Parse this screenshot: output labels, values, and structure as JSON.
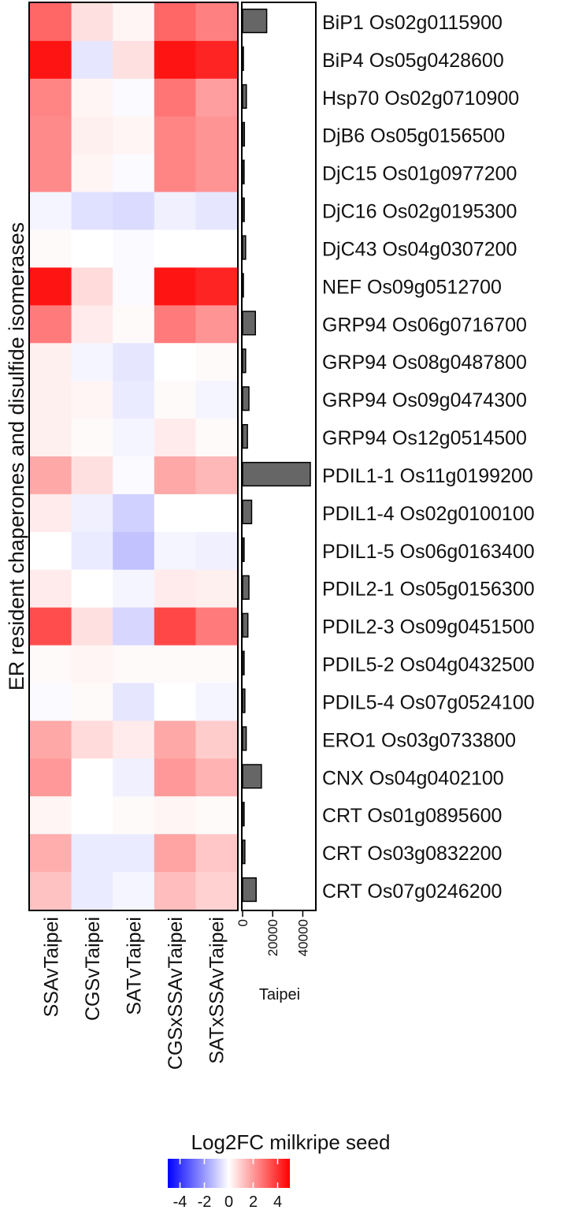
{
  "chart_data": [
    {
      "type": "heatmap",
      "ylabel": "ER resident chaperones and disulfide isomerases",
      "columns": [
        "SSAvTaipei",
        "CGSvTaipei",
        "SATvTaipei",
        "CGSxSSAvTaipei",
        "SATxSSAvTaipei"
      ],
      "rows": [
        "BiP1 Os02g0115900",
        "BiP4 Os05g0428600",
        "Hsp70 Os02g0710900",
        "DjB6 Os05g0156500",
        "DjC15 Os01g0977200",
        "DjC16 Os02g0195300",
        "DjC43 Os04g0307200",
        "NEF Os09g0512700",
        "GRP94 Os06g0716700",
        "GRP94 Os08g0487800",
        "GRP94 Os09g0474300",
        "GRP94 Os12g0514500",
        "PDIL1-1 Os11g0199200",
        "PDIL1-4 Os02g0100100",
        "PDIL1-5 Os06g0163400",
        "PDIL2-1 Os05g0156300",
        "PDIL2-3 Os09g0451500",
        "PDIL5-2 Os04g0432500",
        "PDIL5-4 Os07g0524100",
        "ERO1 Os03g0733800",
        "CNX Os04g0402100",
        "CRT Os01g0895600",
        "CRT Os03g0832200",
        "CRT Os07g0246200"
      ],
      "values": [
        [
          3.0,
          0.6,
          0.2,
          3.0,
          2.5
        ],
        [
          4.6,
          -0.5,
          0.6,
          4.6,
          4.3
        ],
        [
          2.4,
          0.2,
          -0.1,
          2.7,
          1.9
        ],
        [
          2.3,
          0.3,
          0.2,
          2.4,
          2.1
        ],
        [
          2.3,
          0.2,
          -0.1,
          2.4,
          2.1
        ],
        [
          -0.2,
          -0.6,
          -0.7,
          -0.3,
          -0.5
        ],
        [
          0.1,
          0.0,
          -0.1,
          0.0,
          0.0
        ],
        [
          4.6,
          0.7,
          -0.1,
          4.6,
          4.3
        ],
        [
          2.6,
          0.4,
          0.1,
          2.6,
          2.1
        ],
        [
          0.3,
          -0.2,
          -0.5,
          0.0,
          0.1
        ],
        [
          0.3,
          0.2,
          -0.4,
          0.1,
          -0.2
        ],
        [
          0.3,
          0.1,
          -0.2,
          0.4,
          0.1
        ],
        [
          1.7,
          0.6,
          -0.1,
          1.7,
          1.4
        ],
        [
          0.4,
          -0.3,
          -0.9,
          0.0,
          0.0
        ],
        [
          0.0,
          -0.4,
          -1.2,
          -0.2,
          -0.3
        ],
        [
          0.4,
          0.0,
          -0.2,
          0.4,
          0.3
        ],
        [
          3.5,
          0.6,
          -0.8,
          3.6,
          2.6
        ],
        [
          0.1,
          0.2,
          0.1,
          0.1,
          0.1
        ],
        [
          -0.1,
          0.1,
          -0.5,
          0.0,
          -0.2
        ],
        [
          1.7,
          0.7,
          0.4,
          1.7,
          1.0
        ],
        [
          2.0,
          0.0,
          -0.3,
          2.0,
          1.5
        ],
        [
          0.2,
          0.0,
          0.1,
          0.2,
          0.1
        ],
        [
          1.6,
          -0.4,
          -0.4,
          1.8,
          1.1
        ],
        [
          1.2,
          -0.4,
          -0.2,
          1.3,
          0.9
        ]
      ],
      "legend": {
        "title": "Log2FC milkripe seed",
        "ticks": [
          -4,
          -2,
          0,
          2,
          4
        ],
        "tick_labels": [
          "-4",
          "-2",
          "0",
          "2",
          "4"
        ],
        "range": [
          -5,
          5
        ],
        "low_color": "#0000ff",
        "mid_color": "#ffffff",
        "high_color": "#ff0000",
        "placement": "bottom"
      }
    },
    {
      "type": "bar",
      "orientation": "horizontal",
      "xlabel": "Taipei",
      "xlim": [
        0,
        45000
      ],
      "x_ticks": [
        0,
        20000,
        40000
      ],
      "x_tick_labels": [
        "0",
        "20000",
        "40000"
      ],
      "bar_color": "#666666",
      "categories": [
        "BiP1 Os02g0115900",
        "BiP4 Os05g0428600",
        "Hsp70 Os02g0710900",
        "DjB6 Os05g0156500",
        "DjC15 Os01g0977200",
        "DjC16 Os02g0195300",
        "DjC43 Os04g0307200",
        "NEF Os09g0512700",
        "GRP94 Os06g0716700",
        "GRP94 Os08g0487800",
        "GRP94 Os09g0474300",
        "GRP94 Os12g0514500",
        "PDIL1-1 Os11g0199200",
        "PDIL1-4 Os02g0100100",
        "PDIL1-5 Os06g0163400",
        "PDIL2-1 Os05g0156300",
        "PDIL2-3 Os09g0451500",
        "PDIL5-2 Os04g0432500",
        "PDIL5-4 Os07g0524100",
        "ERO1 Os03g0733800",
        "CNX Os04g0402100",
        "CRT Os01g0895600",
        "CRT Os03g0832200",
        "CRT Os07g0246200"
      ],
      "values": [
        16000,
        300,
        2500,
        1200,
        1000,
        1100,
        2000,
        300,
        8500,
        2000,
        4200,
        3200,
        45000,
        6000,
        1000,
        4200,
        3500,
        1000,
        1500,
        2400,
        12500,
        1000,
        1500,
        9000
      ]
    }
  ]
}
